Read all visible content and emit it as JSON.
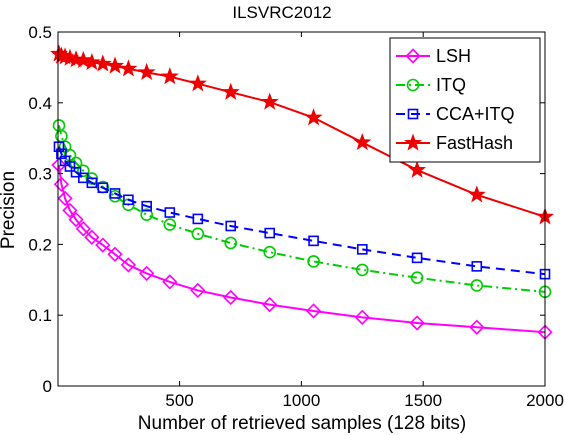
{
  "chart_data": {
    "type": "line",
    "title": "ILSVRC2012",
    "xlabel": "Number of retrieved samples (128 bits)",
    "ylabel": "Precision",
    "xlim": [
      1,
      2000
    ],
    "ylim": [
      0,
      0.5
    ],
    "xticks": [
      500,
      1000,
      1500,
      2000
    ],
    "yticks": [
      0,
      0.1,
      0.2,
      0.3,
      0.4,
      0.5
    ],
    "grid": false,
    "legend_position": "top-right",
    "series": [
      {
        "name": "LSH",
        "color": "#ff00ff",
        "line_style": "solid",
        "marker": "diamond",
        "x": [
          5,
          15,
          30,
          50,
          75,
          105,
          140,
          185,
          235,
          290,
          365,
          460,
          575,
          710,
          870,
          1050,
          1250,
          1475,
          1720,
          2000
        ],
        "y": [
          0.312,
          0.285,
          0.265,
          0.248,
          0.235,
          0.222,
          0.21,
          0.199,
          0.186,
          0.171,
          0.159,
          0.147,
          0.135,
          0.125,
          0.115,
          0.106,
          0.097,
          0.089,
          0.083,
          0.076
        ]
      },
      {
        "name": "ITQ",
        "color": "#00cc00",
        "line_style": "dashdot",
        "marker": "circle",
        "x": [
          5,
          15,
          30,
          50,
          75,
          105,
          140,
          185,
          235,
          290,
          365,
          460,
          575,
          710,
          870,
          1050,
          1250,
          1475,
          1720,
          2000
        ],
        "y": [
          0.368,
          0.353,
          0.338,
          0.326,
          0.315,
          0.304,
          0.293,
          0.281,
          0.268,
          0.256,
          0.242,
          0.228,
          0.215,
          0.202,
          0.189,
          0.176,
          0.164,
          0.153,
          0.142,
          0.133
        ]
      },
      {
        "name": "CCA+ITQ",
        "color": "#0000ff",
        "line_style": "dashed",
        "marker": "square",
        "x": [
          5,
          15,
          30,
          50,
          75,
          105,
          140,
          185,
          235,
          290,
          365,
          460,
          575,
          710,
          870,
          1050,
          1250,
          1475,
          1720,
          2000
        ],
        "y": [
          0.338,
          0.328,
          0.318,
          0.31,
          0.302,
          0.294,
          0.287,
          0.28,
          0.272,
          0.263,
          0.254,
          0.245,
          0.236,
          0.226,
          0.216,
          0.205,
          0.193,
          0.181,
          0.169,
          0.158
        ]
      },
      {
        "name": "FastHash",
        "color": "#ee0000",
        "line_style": "solid",
        "marker": "star",
        "x": [
          5,
          15,
          30,
          50,
          75,
          105,
          140,
          185,
          235,
          290,
          365,
          460,
          575,
          710,
          870,
          1050,
          1250,
          1475,
          1720,
          2000
        ],
        "y": [
          0.469,
          0.466,
          0.465,
          0.463,
          0.461,
          0.46,
          0.457,
          0.455,
          0.452,
          0.448,
          0.443,
          0.437,
          0.427,
          0.415,
          0.401,
          0.379,
          0.344,
          0.305,
          0.27,
          0.239
        ]
      }
    ]
  }
}
